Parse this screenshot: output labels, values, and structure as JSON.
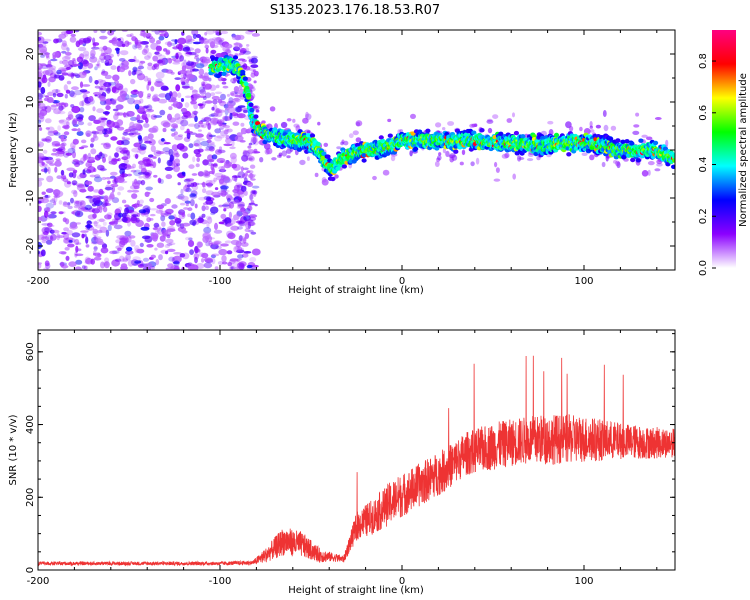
{
  "title": "S135.2023.176.18.53.R07",
  "chart_data": [
    {
      "type": "heatmap",
      "xlabel": "Height of straight line (km)",
      "ylabel": "Frequency (Hz)",
      "xlim": [
        -200,
        150
      ],
      "ylim": [
        -25,
        25
      ],
      "x_ticks": [
        -200,
        -100,
        0,
        100
      ],
      "y_ticks": [
        -20,
        -10,
        0,
        10,
        20
      ],
      "colorbar": {
        "label": "Normalized spectral amplitude",
        "range": [
          0,
          0.92
        ],
        "ticks": [
          0.0,
          0.2,
          0.4,
          0.6,
          0.8
        ],
        "colors": [
          "#ffffff",
          "#8b00ff",
          "#0000ff",
          "#00ffff",
          "#00ff00",
          "#ffff00",
          "#ff0000",
          "#ff0080"
        ]
      },
      "noise_region": {
        "x_range": [
          -200,
          -80
        ],
        "freq_range": [
          -25,
          25
        ],
        "amplitude": 0.1
      },
      "ridge": {
        "x": [
          -105,
          -95,
          -90,
          -85,
          -82,
          -78,
          -72,
          -66,
          -60,
          -54,
          -50,
          -46,
          -42,
          -38,
          -34,
          -28,
          -20,
          -12,
          -5,
          0,
          10,
          20,
          30,
          40,
          50,
          60,
          70,
          80,
          90,
          100,
          110,
          120,
          130,
          140,
          150
        ],
        "freq": [
          17,
          18,
          17,
          12,
          6,
          4,
          3,
          2.5,
          2,
          2,
          1.5,
          0,
          -3,
          -4,
          -2,
          -1,
          0,
          0.5,
          1,
          2,
          2,
          2,
          2,
          2,
          1.5,
          1.5,
          1,
          1,
          1.5,
          1.5,
          1,
          0,
          0,
          0,
          -2
        ],
        "peak_amplitude": 0.9
      }
    },
    {
      "type": "line",
      "xlabel": "Height of straight line (km)",
      "ylabel": "SNR (10 * v/v)",
      "xlim": [
        -200,
        150
      ],
      "ylim": [
        0,
        660
      ],
      "x_ticks": [
        -200,
        -100,
        0,
        100
      ],
      "y_ticks": [
        0,
        200,
        400,
        600
      ],
      "color": "#ee3333",
      "trend": {
        "x": [
          -200,
          -150,
          -100,
          -82,
          -75,
          -65,
          -55,
          -45,
          -38,
          -32,
          -25,
          -15,
          -5,
          5,
          15,
          25,
          35,
          50,
          65,
          80,
          100,
          120,
          135,
          150
        ],
        "y": [
          18,
          18,
          18,
          20,
          40,
          80,
          70,
          40,
          35,
          30,
          120,
          150,
          190,
          220,
          250,
          280,
          320,
          340,
          355,
          360,
          360,
          355,
          350,
          350
        ],
        "noise": [
          5,
          5,
          5,
          6,
          20,
          40,
          35,
          20,
          12,
          10,
          40,
          50,
          60,
          60,
          60,
          60,
          60,
          65,
          65,
          70,
          65,
          50,
          45,
          40
        ]
      }
    }
  ]
}
